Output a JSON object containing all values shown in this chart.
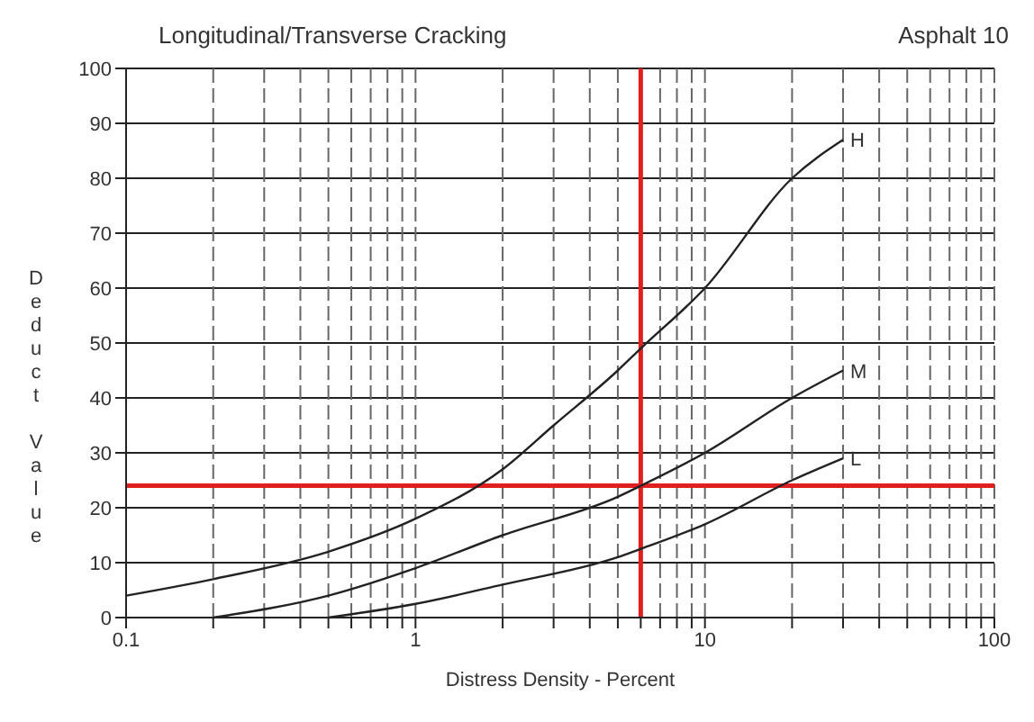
{
  "chart_data": {
    "type": "line",
    "title": "Longitudinal/Transverse Cracking",
    "subtitle": "Asphalt 10",
    "xlabel": "Distress Density - Percent",
    "ylabel": "Deduct Value",
    "log": "x",
    "xlim": [
      0.1,
      100
    ],
    "ylim": [
      0,
      100
    ],
    "xticks": [
      0.1,
      {
        "value": 0.2,
        "label": null
      },
      {
        "value": 0.3,
        "label": null
      },
      {
        "value": 0.4,
        "label": null
      },
      {
        "value": 0.5,
        "label": null
      },
      {
        "value": 0.6,
        "label": null
      },
      {
        "value": 0.7,
        "label": null
      },
      {
        "value": 0.8,
        "label": null
      },
      {
        "value": 0.9,
        "label": null
      },
      1,
      {
        "value": 2,
        "label": null
      },
      {
        "value": 3,
        "label": null
      },
      {
        "value": 4,
        "label": null
      },
      {
        "value": 5,
        "label": null
      },
      {
        "value": 6,
        "label": null
      },
      {
        "value": 7,
        "label": null
      },
      {
        "value": 8,
        "label": null
      },
      {
        "value": 9,
        "label": null
      },
      10,
      {
        "value": 20,
        "label": null
      },
      {
        "value": 30,
        "label": null
      },
      {
        "value": 40,
        "label": null
      },
      {
        "value": 50,
        "label": null
      },
      {
        "value": 60,
        "label": null
      },
      {
        "value": 70,
        "label": null
      },
      {
        "value": 80,
        "label": null
      },
      {
        "value": 90,
        "label": null
      },
      100
    ],
    "yticks": [
      0,
      10,
      20,
      30,
      40,
      50,
      60,
      70,
      80,
      90,
      100
    ],
    "grid": true,
    "legend": false,
    "marker": "none",
    "line_style": "solid",
    "series": [
      {
        "name": "H",
        "color": "#222222",
        "x": [
          0.1,
          0.2,
          0.5,
          1,
          2,
          3,
          5,
          6,
          10,
          20,
          30
        ],
        "values": [
          4,
          7,
          12,
          18,
          27,
          35,
          45,
          49,
          60,
          80,
          87
        ]
      },
      {
        "name": "M",
        "color": "#222222",
        "x": [
          0.2,
          0.5,
          1,
          2,
          5,
          6,
          10,
          20,
          30
        ],
        "values": [
          0,
          4,
          9,
          15,
          22,
          24,
          30,
          40,
          45
        ]
      },
      {
        "name": "L",
        "color": "#222222",
        "x": [
          0.5,
          1,
          2,
          5,
          6,
          10,
          20,
          30
        ],
        "values": [
          0,
          2.5,
          6,
          11,
          12.5,
          17,
          25,
          29
        ]
      }
    ],
    "ref_lines": [
      {
        "axis": "x",
        "value": 6,
        "color": "#e02020"
      },
      {
        "axis": "y",
        "value": 24,
        "color": "#e02020"
      }
    ]
  }
}
